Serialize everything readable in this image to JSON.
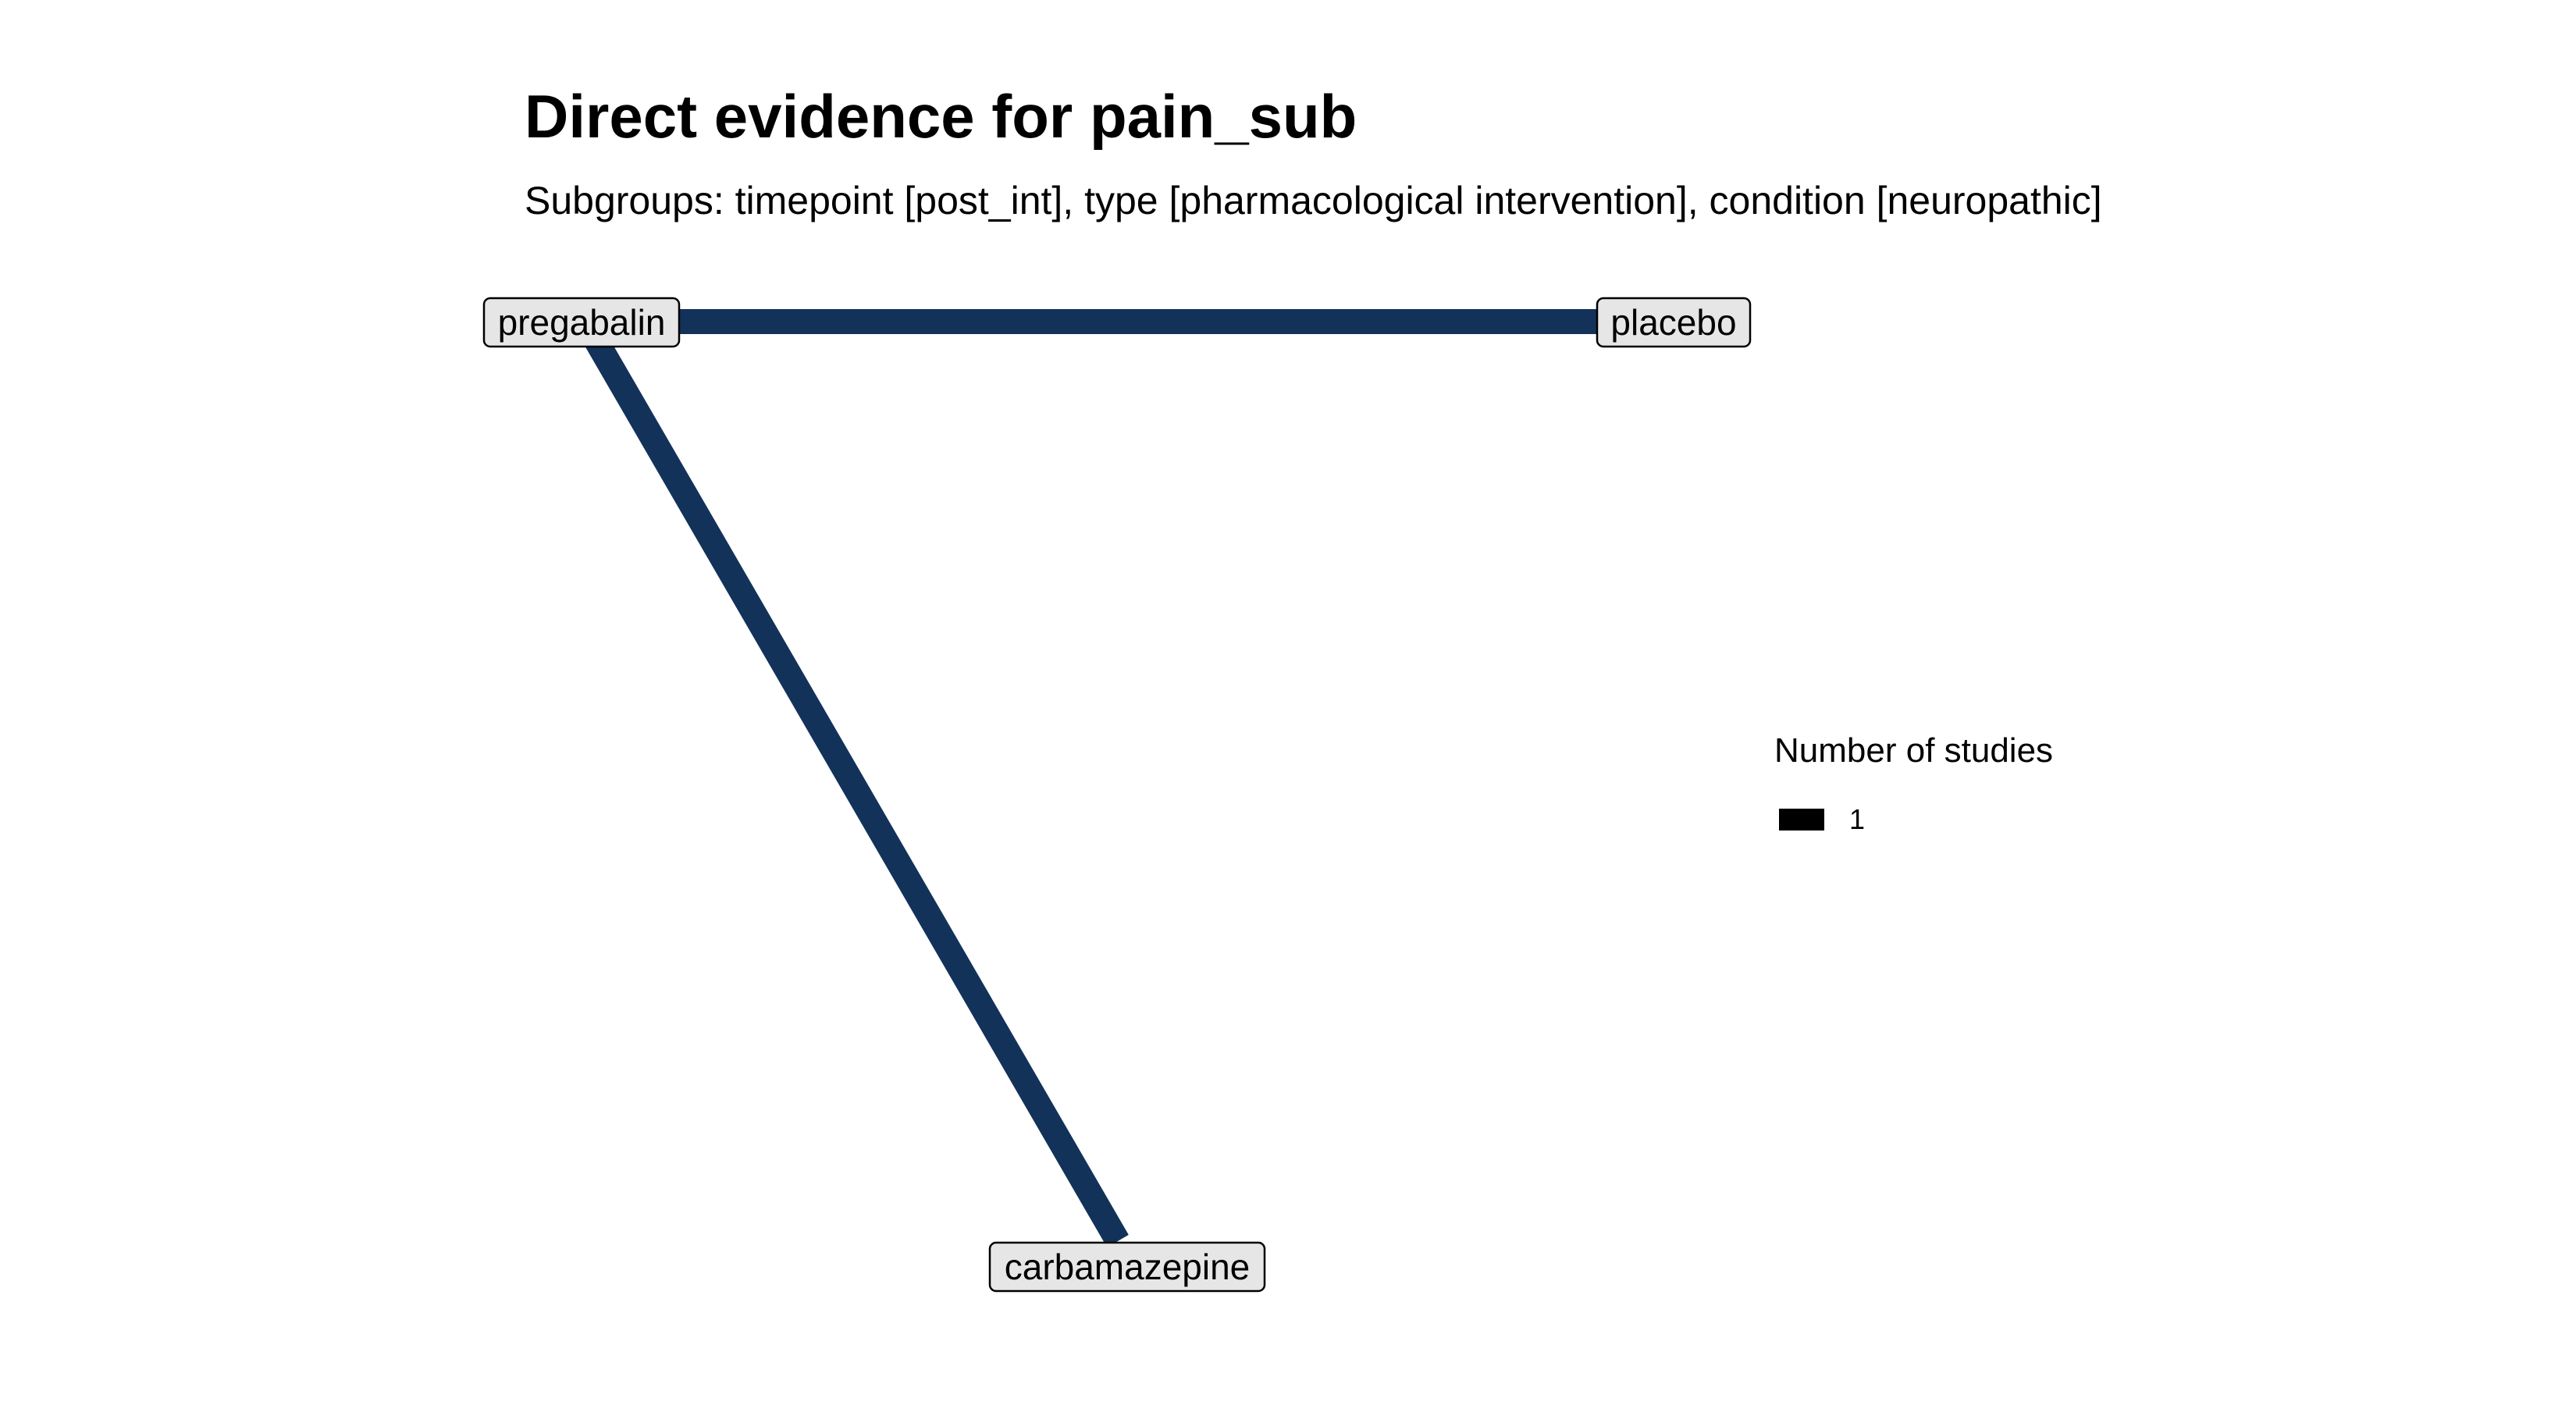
{
  "title": "Direct evidence for pain_sub",
  "subtitle": "Subgroups: timepoint [post_int], type [pharmacological intervention], condition [neuropathic]",
  "network": {
    "edge_color": "#13325a",
    "node_fill": "#e6e6e6",
    "node_border": "#000000",
    "nodes": [
      {
        "id": "pregabalin",
        "label": "pregabalin"
      },
      {
        "id": "placebo",
        "label": "placebo"
      },
      {
        "id": "carbamazepine",
        "label": "carbamazepine"
      }
    ],
    "edges": [
      {
        "from": "pregabalin",
        "to": "placebo",
        "studies": 1
      },
      {
        "from": "pregabalin",
        "to": "carbamazepine",
        "studies": 1
      }
    ]
  },
  "legend": {
    "title": "Number of studies",
    "items": [
      {
        "label": "1",
        "color": "#000000"
      }
    ]
  }
}
